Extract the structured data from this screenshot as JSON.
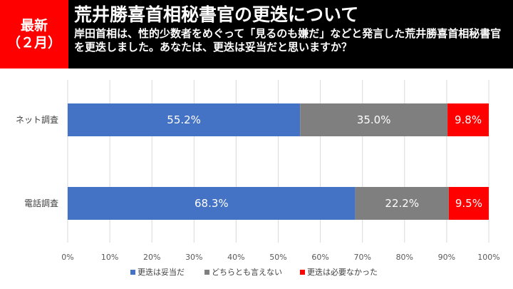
{
  "badge": {
    "line1": "最新",
    "line2": "（２月）"
  },
  "header": {
    "title": "荒井勝喜首相秘書官の更迭について",
    "question": "岸田首相は、性的少数者をめぐって「見るのも嫌だ」などと発言した荒井勝喜首相秘書官を更迭しました。あなたは、更迭は妥当だと思いますか？"
  },
  "colors": {
    "header_bg": "#000000",
    "badge_bg": "#ff0000"
  },
  "chart_data": {
    "type": "bar",
    "orientation": "horizontal",
    "stacked": true,
    "categories": [
      "ネット調査",
      "電話調査"
    ],
    "series": [
      {
        "name": "更迭は妥当だ",
        "color": "#4472c4",
        "values": [
          55.2,
          68.3
        ],
        "labels": [
          "55.2%",
          "68.3%"
        ]
      },
      {
        "name": "どちらとも言えない",
        "color": "#7f7f7f",
        "values": [
          35.0,
          22.2
        ],
        "labels": [
          "35.0%",
          "22.2%"
        ]
      },
      {
        "name": "更迭は必要なかった",
        "color": "#ff0000",
        "values": [
          9.8,
          9.5
        ],
        "labels": [
          "9.8%",
          "9.5%"
        ]
      }
    ],
    "xlim": [
      0,
      100
    ],
    "xticks": [
      "0%",
      "10%",
      "20%",
      "30%",
      "40%",
      "50%",
      "60%",
      "70%",
      "80%",
      "90%",
      "100%"
    ],
    "grid": true,
    "legend": "bottom"
  }
}
